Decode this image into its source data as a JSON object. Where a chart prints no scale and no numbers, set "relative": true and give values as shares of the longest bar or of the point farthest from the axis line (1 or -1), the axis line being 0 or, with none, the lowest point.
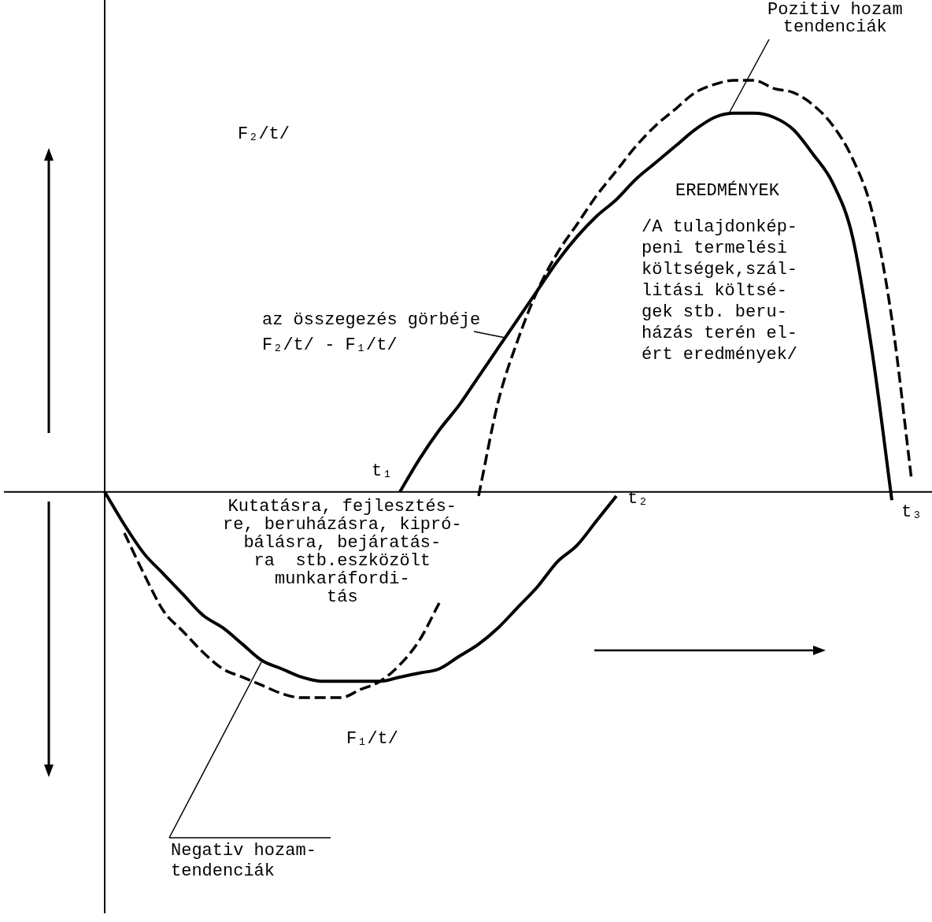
{
  "chart_data": {
    "type": "line",
    "relative": true,
    "categories": [
      null,
      null,
      null,
      null,
      null,
      null,
      null,
      null,
      null,
      null,
      null,
      null,
      null,
      null,
      null,
      null,
      null,
      null,
      null,
      null,
      null,
      null,
      null,
      null,
      null,
      null,
      null,
      null,
      null,
      null,
      null,
      null,
      null,
      null,
      null,
      null,
      null,
      null,
      null,
      null,
      null,
      null,
      null
    ],
    "series": [
      {
        "color": "#000000",
        "line_style": "solid",
        "values": [
          0,
          -0.08,
          -0.15,
          -0.2,
          -0.25,
          -0.3,
          -0.33,
          -0.37,
          -0.41,
          -0.43,
          -0.45,
          -0.46,
          -0.46,
          -0.46,
          -0.46,
          -0.45,
          -0.44,
          -0.43,
          -0.4,
          -0.37,
          -0.33,
          -0.28,
          -0.23,
          -0.17,
          -0.13,
          -0.07,
          -0.01,
          null,
          null,
          null,
          null,
          null,
          null,
          null,
          null,
          null,
          null,
          null,
          null,
          null,
          null,
          null,
          null
        ]
      },
      {
        "color": "#000000",
        "line_style": "dashed",
        "values": [
          null,
          -0.1,
          -0.2,
          -0.29,
          -0.34,
          -0.39,
          -0.43,
          -0.45,
          -0.47,
          -0.49,
          -0.5,
          -0.5,
          -0.5,
          -0.48,
          -0.46,
          -0.42,
          -0.36,
          -0.27,
          null,
          null,
          null,
          null,
          null,
          null,
          null,
          null,
          null,
          null,
          null,
          null,
          null,
          null,
          null,
          null,
          null,
          null,
          null,
          null,
          null,
          null,
          null,
          null,
          null
        ]
      },
      {
        "color": "#000000",
        "line_style": "solid",
        "values": [
          null,
          null,
          null,
          null,
          null,
          null,
          null,
          null,
          null,
          null,
          null,
          null,
          null,
          null,
          null,
          0,
          0.08,
          0.15,
          0.21,
          0.28,
          0.35,
          0.42,
          0.49,
          0.56,
          0.62,
          0.67,
          0.71,
          0.76,
          0.8,
          0.84,
          0.88,
          0.91,
          0.92,
          0.92,
          0.91,
          0.88,
          0.82,
          0.75,
          0.62,
          0.34,
          -0.02,
          null,
          null
        ]
      },
      {
        "color": "#000000",
        "line_style": "dashed",
        "values": [
          null,
          null,
          null,
          null,
          null,
          null,
          null,
          null,
          null,
          null,
          null,
          null,
          null,
          null,
          null,
          null,
          null,
          null,
          null,
          -0.01,
          0.22,
          0.37,
          0.49,
          0.58,
          0.65,
          0.72,
          0.78,
          0.84,
          0.89,
          0.93,
          0.97,
          0.99,
          1,
          1,
          0.98,
          0.97,
          0.94,
          0.89,
          0.81,
          0.68,
          0.42,
          0.03,
          null
        ]
      }
    ],
    "annotations": [
      "Pozitiv hozam\ntendenciák",
      "F₂/t/",
      "EREDMÉNYEK",
      "/A tulajdonkép-\npeni termelési\nköltségek,szál-\nlitási költsé-\ngek stb. beru-\nházás terén el-\nért eredmények/",
      "az összegezés görbéje",
      "F₂/t/ - F₁/t/",
      "t₁",
      "t₂",
      "t₃",
      "Kutatásra, fejlesztés-\nre, beruházásra, kipró-\nbálásra, bejáratás-\nra  stb.eszközölt\nmunkaráfordi-\ntás",
      "F₁/t/",
      "Negativ hozam-\ntendenciák"
    ]
  }
}
